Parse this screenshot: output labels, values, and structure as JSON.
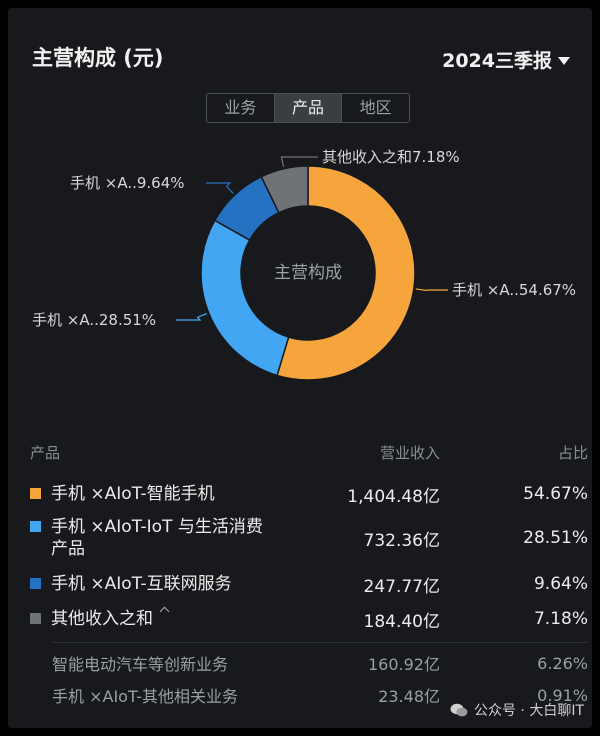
{
  "header": {
    "title": "主营构成 (元)"
  },
  "period": {
    "label": "2024三季报"
  },
  "tabs": [
    {
      "label": "业务",
      "active": false
    },
    {
      "label": "产品",
      "active": true
    },
    {
      "label": "地区",
      "active": false
    }
  ],
  "chart_data": {
    "type": "pie",
    "donut": true,
    "center_label": "主营构成",
    "slices": [
      {
        "label": "手机 ×A..54.67%",
        "value": 54.67,
        "color": "#f5a53b"
      },
      {
        "label": "手机 ×A..28.51%",
        "value": 28.51,
        "color": "#43a6f3"
      },
      {
        "label": "手机 ×A..9.64%",
        "value": 9.64,
        "color": "#2672c2"
      },
      {
        "label": "其他收入之和7.18%",
        "value": 7.18,
        "color": "#6f7276"
      }
    ]
  },
  "table": {
    "headers": {
      "name": "产品",
      "revenue": "营业收入",
      "share": "占比"
    },
    "rows": [
      {
        "name": "手机 ×AIoT-智能手机",
        "revenue": "1,404.48亿",
        "share": "54.67%",
        "color": "#f5a53b"
      },
      {
        "name_line1": "手机 ×AIoT-IoT 与生活消费",
        "name_line2": "产品",
        "revenue": "732.36亿",
        "share": "28.51%",
        "color": "#43a6f3"
      },
      {
        "name": "手机 ×AIoT-互联网服务",
        "revenue": "247.77亿",
        "share": "9.64%",
        "color": "#2672c2"
      },
      {
        "name": "其他收入之和",
        "revenue": "184.40亿",
        "share": "7.18%",
        "color": "#6f7276"
      }
    ],
    "sub_rows": [
      {
        "name": "智能电动汽车等创新业务",
        "revenue": "160.92亿",
        "share": "6.26%"
      },
      {
        "name": "手机 ×AIoT-其他相关业务",
        "revenue": "23.48亿",
        "share": "0.91%"
      }
    ]
  },
  "watermark": {
    "text": "公众号 · 大白聊IT"
  },
  "icons": {
    "expand": "chevron-up-icon",
    "period_dropdown": "caret-down-icon",
    "watermark": "wechat-icon"
  }
}
